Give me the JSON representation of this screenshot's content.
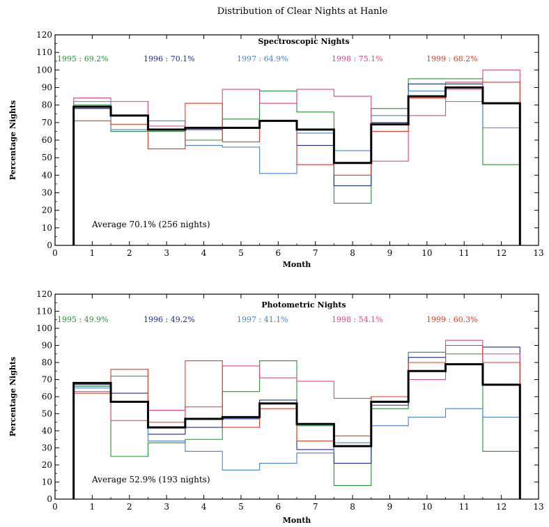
{
  "figure_title": "Distribution of Clear Nights at Hanle",
  "colors": {
    "1995": "#2e8b3e",
    "1996": "#1e2a8a",
    "1997": "#4a7fd0",
    "1998": "#d8488a",
    "1999": "#e03a2a",
    "average": "#000000"
  },
  "chart_data": [
    {
      "type": "line",
      "step": true,
      "title": "Spectroscopic Nights",
      "xlabel": "Month",
      "ylabel": "Percentage Nights",
      "xlim": [
        0,
        13
      ],
      "ylim": [
        0,
        120
      ],
      "xticks": [
        "0",
        "1",
        "2",
        "3",
        "4",
        "5",
        "6",
        "7",
        "8",
        "9",
        "10",
        "11",
        "12",
        "13"
      ],
      "yticks": [
        "0",
        "10",
        "20",
        "30",
        "40",
        "50",
        "60",
        "70",
        "80",
        "90",
        "100",
        "110",
        "120"
      ],
      "x": [
        1,
        2,
        3,
        4,
        5,
        6,
        7,
        8,
        9,
        10,
        11,
        12
      ],
      "legend_labels": [
        "1995 : 69.2%",
        "1996 : 70.1%",
        "1997 : 64.9%",
        "1998 : 75.1%",
        "1999 : 68.2%"
      ],
      "annotation": "Average 70.1% (256 nights)",
      "series": [
        {
          "key": "1995",
          "values": [
            80,
            65,
            65,
            60,
            72,
            88,
            76,
            24,
            78,
            95,
            95,
            46
          ]
        },
        {
          "key": "1996",
          "values": [
            78,
            74,
            66,
            66,
            67,
            71,
            57,
            34,
            70,
            92,
            92,
            81
          ]
        },
        {
          "key": "1997",
          "values": [
            82,
            66,
            71,
            57,
            56,
            41,
            64,
            54,
            74,
            88,
            82,
            67
          ]
        },
        {
          "key": "1998",
          "values": [
            84,
            82,
            68,
            67,
            89,
            81,
            89,
            85,
            48,
            74,
            89,
            100
          ]
        },
        {
          "key": "1999",
          "values": [
            71,
            69,
            55,
            81,
            59,
            71,
            46,
            40,
            65,
            84,
            93,
            93
          ]
        },
        {
          "key": "average",
          "values": [
            79,
            74,
            66,
            67,
            67,
            71,
            66,
            47,
            69,
            85,
            90,
            81
          ]
        }
      ]
    },
    {
      "type": "line",
      "step": true,
      "title": "Photometric Nights",
      "xlabel": "Month",
      "ylabel": "Percentage Nights",
      "xlim": [
        0,
        13
      ],
      "ylim": [
        0,
        120
      ],
      "xticks": [
        "0",
        "1",
        "2",
        "3",
        "4",
        "5",
        "6",
        "7",
        "8",
        "9",
        "10",
        "11",
        "12",
        "13"
      ],
      "yticks": [
        "0",
        "10",
        "20",
        "30",
        "40",
        "50",
        "60",
        "70",
        "80",
        "90",
        "100",
        "110",
        "120"
      ],
      "x": [
        1,
        2,
        3,
        4,
        5,
        6,
        7,
        8,
        9,
        10,
        11,
        12
      ],
      "legend_labels": [
        "1995 : 49.9%",
        "1996 : 49.2%",
        "1997 : 41.1%",
        "1998 : 54.1%",
        "1999 : 60.3%"
      ],
      "annotation": "Average 52.9% (193 nights)",
      "series": [
        {
          "key": "1995",
          "values": [
            66,
            25,
            33,
            35,
            63,
            81,
            43,
            8,
            53,
            86,
            85,
            28
          ]
        },
        {
          "key": "1996",
          "values": [
            67,
            62,
            38,
            42,
            47,
            58,
            29,
            21,
            55,
            83,
            79,
            89
          ]
        },
        {
          "key": "1997",
          "values": [
            65,
            72,
            34,
            28,
            17,
            21,
            27,
            33,
            43,
            48,
            53,
            48
          ]
        },
        {
          "key": "1998",
          "values": [
            63,
            46,
            52,
            54,
            78,
            71,
            69,
            59,
            60,
            70,
            93,
            85
          ]
        },
        {
          "key": "1999",
          "values": [
            62,
            76,
            45,
            81,
            42,
            53,
            34,
            37,
            60,
            80,
            90,
            80
          ]
        },
        {
          "key": "average",
          "values": [
            68,
            57,
            42,
            47,
            48,
            56,
            44,
            31,
            57,
            75,
            79,
            67
          ]
        }
      ]
    }
  ]
}
